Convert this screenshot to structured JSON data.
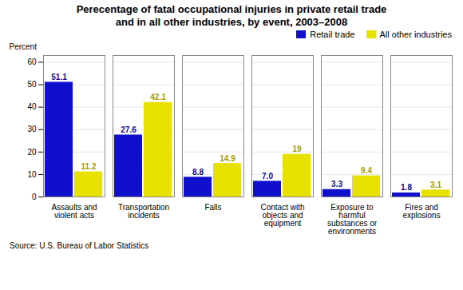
{
  "chart_data": {
    "type": "bar",
    "title": "Perecentage of fatal occupational injuries in private retail trade\nand in all other industries, by event, 2003–2008",
    "categories": [
      "Assaults and\nviolent acts",
      "Transportation\nincidents",
      "Falls",
      "Contact with\nobjects and\nequipment",
      "Exposure to\nharmful\nsubstances or\nenvironments",
      "Fires and\nexplosions"
    ],
    "series": [
      {
        "name": "Retail trade",
        "color": "#1010cc",
        "values": [
          51.1,
          27.6,
          8.8,
          7.0,
          3.3,
          1.8
        ],
        "value_labels": [
          "51.1",
          "27.6",
          "8.8",
          "7.0",
          "3.3",
          "1.8"
        ]
      },
      {
        "name": "All other industries",
        "color": "#e8e000",
        "values": [
          11.2,
          42.1,
          14.9,
          19,
          9.4,
          3.1
        ],
        "value_labels": [
          "11.2",
          "42.1",
          "14.9",
          "19",
          "9.4",
          "3.1"
        ]
      }
    ],
    "ylabel": "Percent",
    "ylim": [
      0,
      63
    ],
    "yticks": [
      0,
      10,
      20,
      30,
      40,
      50,
      60
    ],
    "grid": true,
    "legend": "upper right",
    "data_labels": true,
    "caption": "Source: U.S. Bureau of Labor Statistics"
  }
}
